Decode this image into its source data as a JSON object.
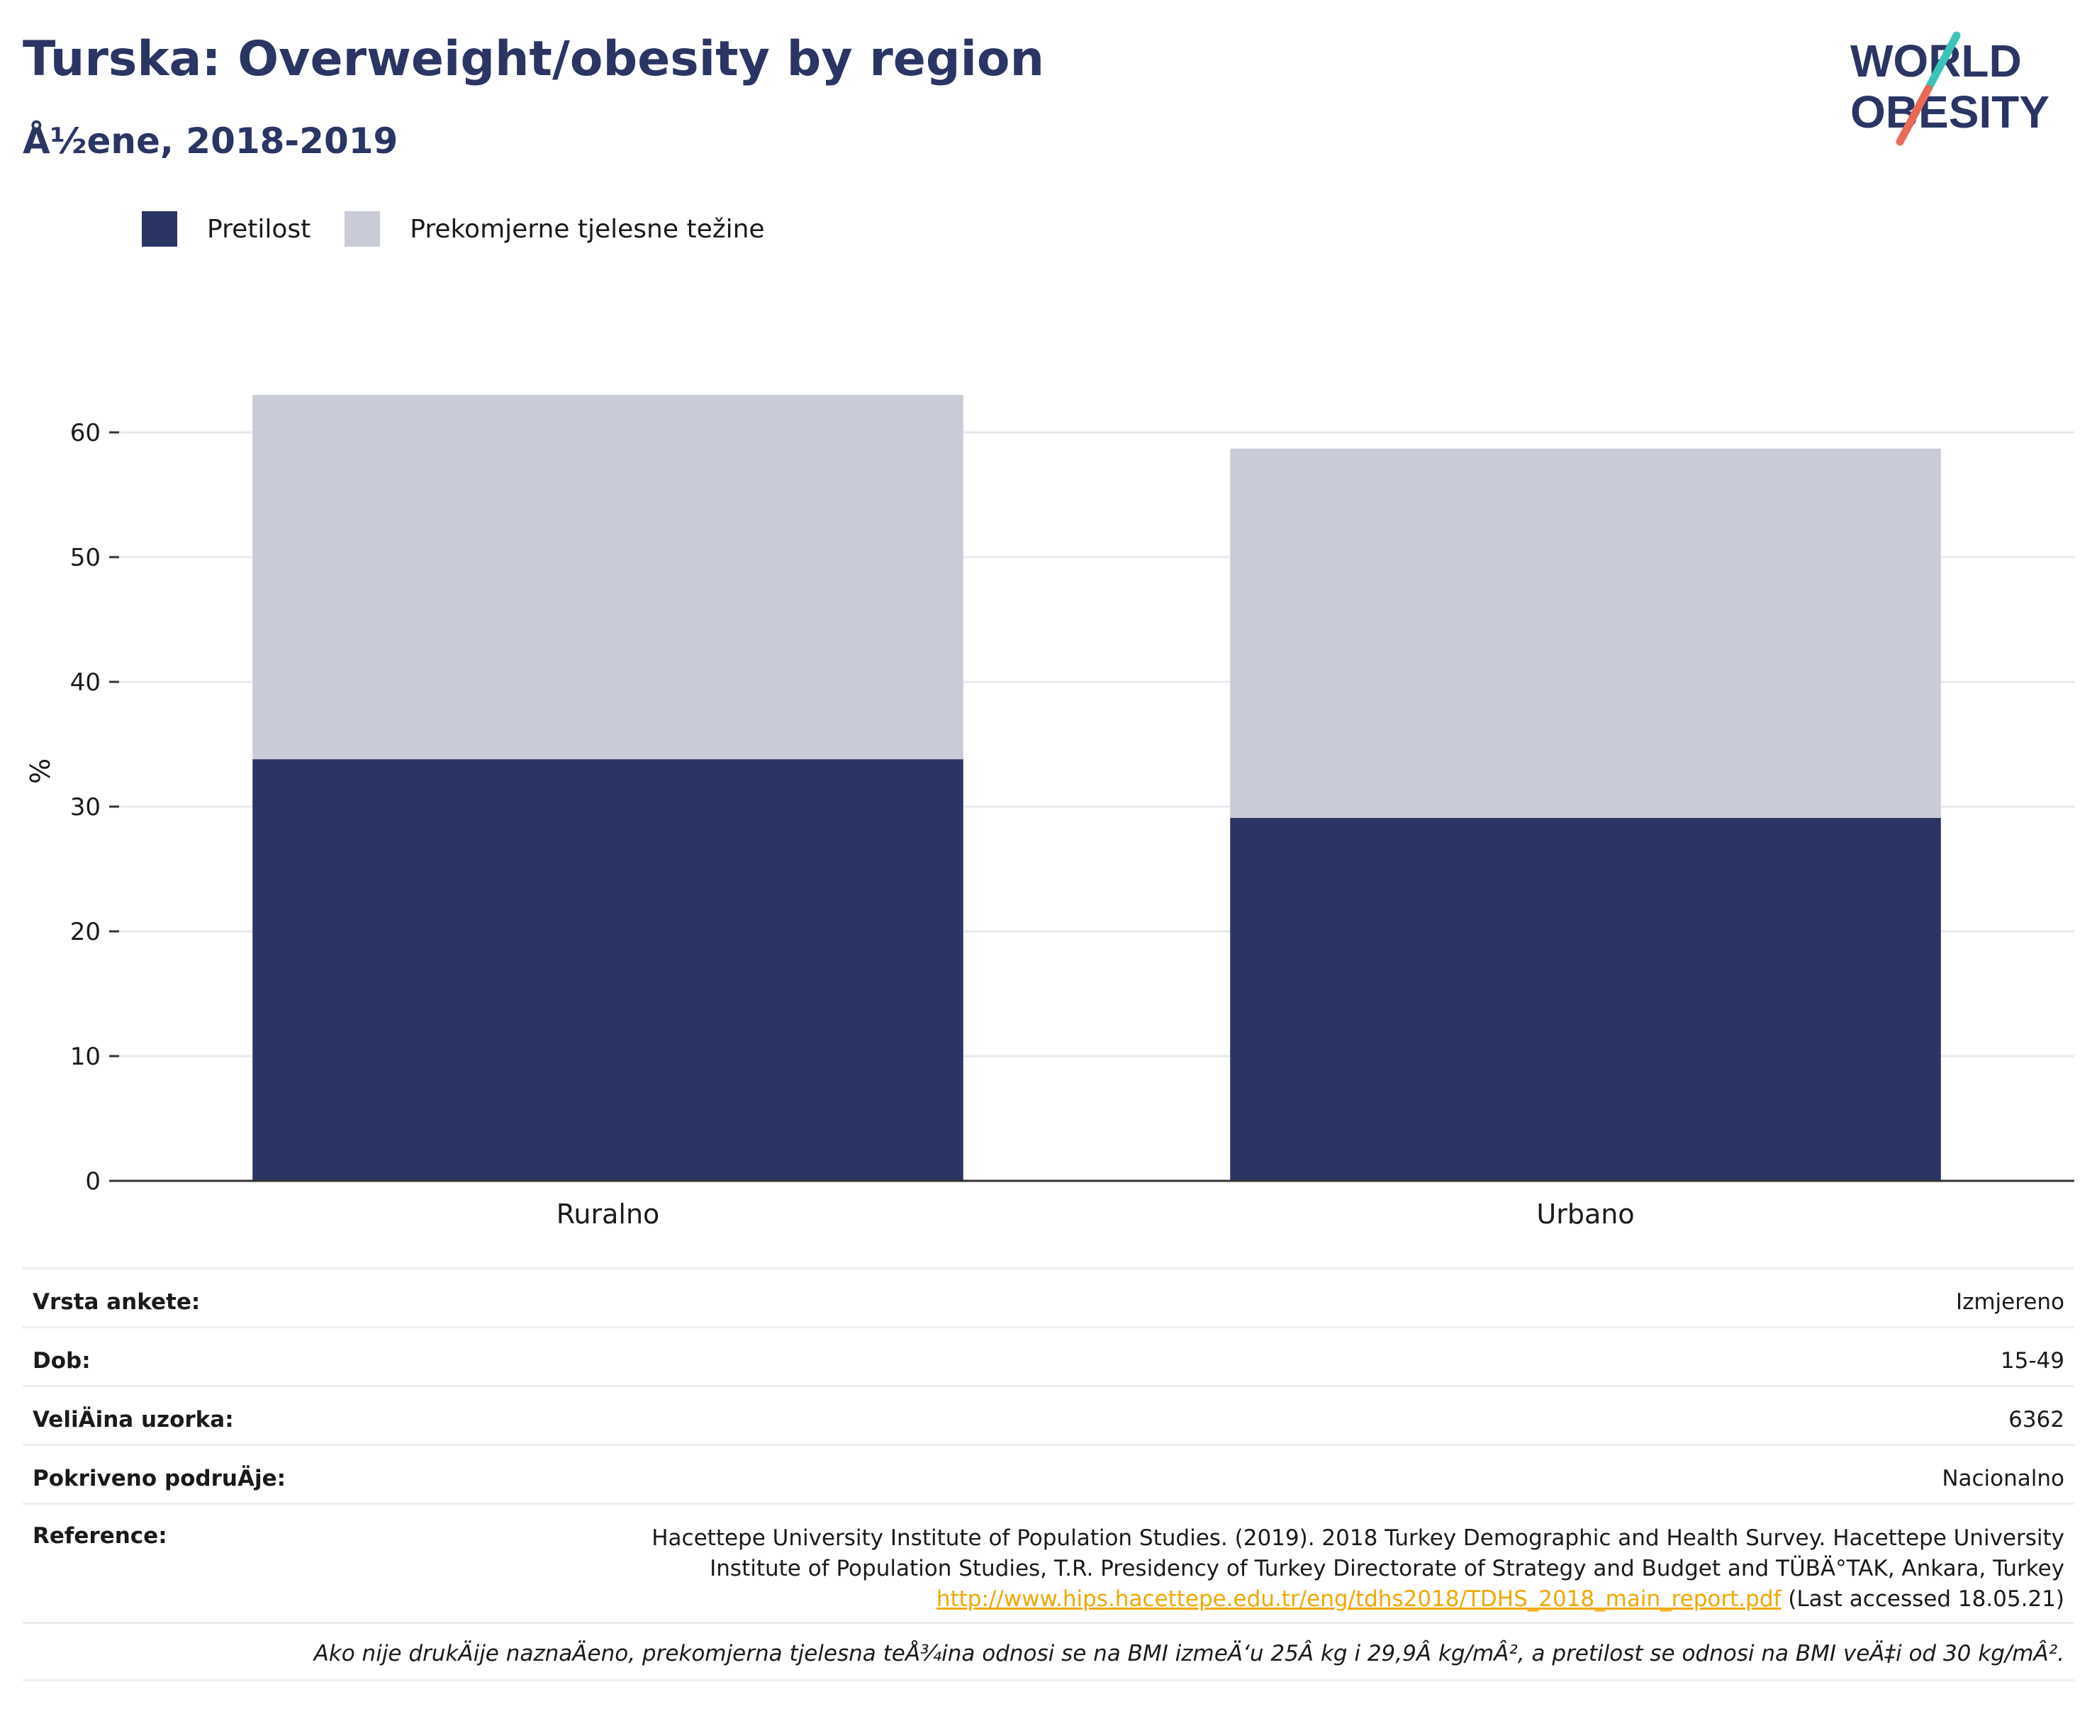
{
  "header": {
    "title": "Turska: Overweight/obesity by region",
    "subtitle": "Å½ene, 2018-2019"
  },
  "logo": {
    "line1": "WORLD",
    "line2": "OBESITY",
    "colors": {
      "text": "#2a3563",
      "slash_teal": "#3cc3b8",
      "slash_red": "#e96a56"
    }
  },
  "colors": {
    "obesity": "#2a3563",
    "overweight": "#c9cbd6",
    "grid": "#e8e9ef",
    "axis": "#333333"
  },
  "chart_data": {
    "type": "bar",
    "stacked": true,
    "categories": [
      "Ruralno",
      "Urbano"
    ],
    "series": [
      {
        "name": "Pretilost",
        "values": [
          33.8,
          29.1
        ],
        "color": "#2a3563"
      },
      {
        "name": "Prekomjerne tjelesne težine",
        "values": [
          29.2,
          29.6
        ],
        "color": "#c9cbd6"
      }
    ],
    "ylabel": "%",
    "xlabel": "",
    "ylim": [
      0,
      66
    ],
    "yticks": [
      0,
      10,
      20,
      30,
      40,
      50,
      60
    ],
    "legend": "top-left",
    "grid": true
  },
  "info": {
    "rows": [
      {
        "key": "Vrsta ankete:",
        "value": "Izmjereno"
      },
      {
        "key": "Dob:",
        "value": "15-49"
      },
      {
        "key": "VeliÄ\bina uzorka:",
        "value": "6362"
      },
      {
        "key": "Pokriveno podruÄ\bje:",
        "value": "Nacionalno"
      }
    ],
    "reference": {
      "key": "Reference:",
      "line1": "Hacettepe University Institute of Population Studies. (2019). 2018 Turkey Demographic and Health Survey. Hacettepe University",
      "line2": "Institute of Population Studies, T.R. Presidency of Turkey Directorate of Strategy and Budget and TÜBÄ°TAK, Ankara, Turkey",
      "link": "http://www.hips.hacettepe.edu.tr/eng/tdhs2018/TDHS_2018_main_report.pdf",
      "accessed": " (Last accessed 18.05.21)"
    },
    "note": "Ako nije drukÄ\bije naznaÄ\beno, prekomjerna tjelesna teÅ¾ina odnosi se na BMI izmeÄ‘u 25Â kg i 29,9Â kg/mÂ², a pretilost se odnosi na BMI veÄ‡i od 30 kg/mÂ²."
  }
}
